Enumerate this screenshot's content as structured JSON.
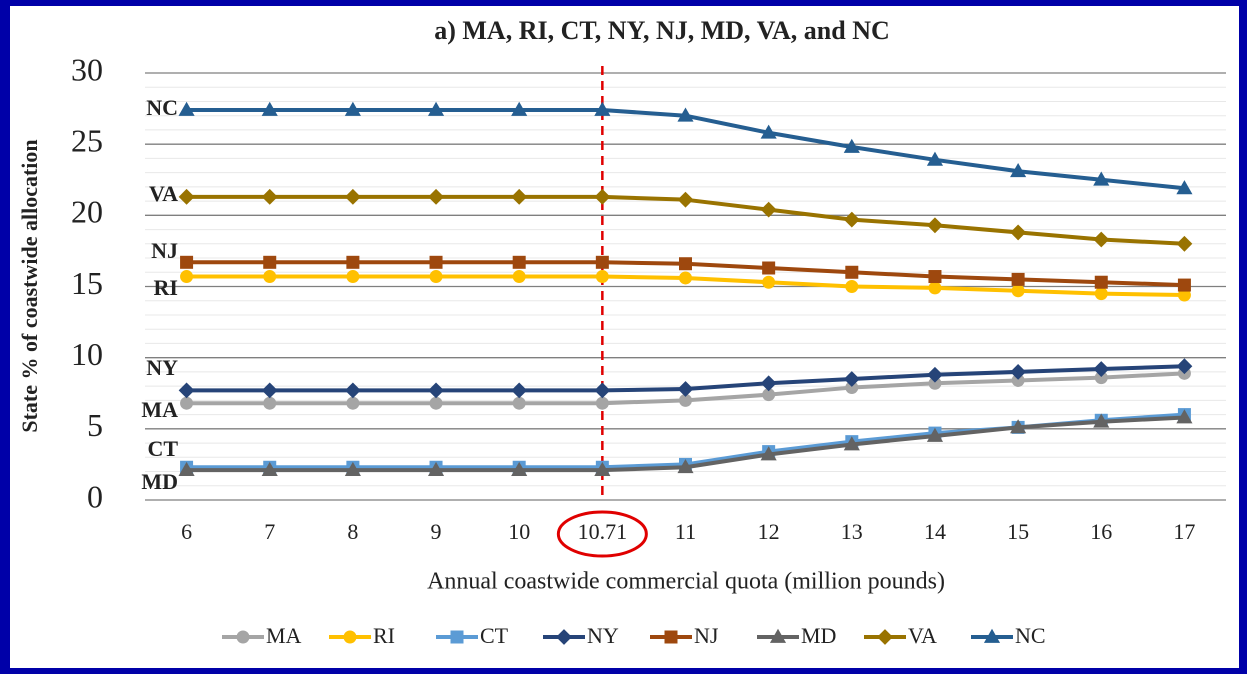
{
  "chart_data": {
    "type": "line",
    "title": "a) MA, RI, CT, NY, NJ, MD, VA, and NC",
    "x_label": "Annual coastwide commercial quota (million pounds)",
    "y_label": "State % of coastwide allocation",
    "categories": [
      "6",
      "7",
      "8",
      "9",
      "10",
      "10.71",
      "11",
      "12",
      "13",
      "14",
      "15",
      "16",
      "17"
    ],
    "highlight_category": "10.71",
    "ylim": [
      0,
      30
    ],
    "yticks": [
      0,
      5,
      10,
      15,
      20,
      25,
      30
    ],
    "minor_yticks": [
      1,
      2,
      3,
      4,
      6,
      7,
      8,
      9,
      11,
      12,
      13,
      14,
      16,
      17,
      18,
      19,
      21,
      22,
      23,
      24,
      26,
      27,
      28,
      29
    ],
    "grid": true,
    "legend": "bottom",
    "series": [
      {
        "name": "MA",
        "color": "#a5a5a5",
        "marker": "circle",
        "values": [
          6.8,
          6.8,
          6.8,
          6.8,
          6.8,
          6.8,
          7.0,
          7.4,
          7.9,
          8.2,
          8.4,
          8.6,
          8.9
        ]
      },
      {
        "name": "RI",
        "color": "#ffc000",
        "marker": "circle",
        "values": [
          15.7,
          15.7,
          15.7,
          15.7,
          15.7,
          15.7,
          15.6,
          15.3,
          15.0,
          14.9,
          14.7,
          14.5,
          14.4
        ]
      },
      {
        "name": "CT",
        "color": "#5b9bd5",
        "marker": "square",
        "values": [
          2.3,
          2.3,
          2.3,
          2.3,
          2.3,
          2.3,
          2.5,
          3.4,
          4.1,
          4.7,
          5.1,
          5.6,
          6.0
        ]
      },
      {
        "name": "NY",
        "color": "#264478",
        "marker": "diamond",
        "values": [
          7.7,
          7.7,
          7.7,
          7.7,
          7.7,
          7.7,
          7.8,
          8.2,
          8.5,
          8.8,
          9.0,
          9.2,
          9.4
        ]
      },
      {
        "name": "NJ",
        "color": "#9e480e",
        "marker": "square",
        "values": [
          16.7,
          16.7,
          16.7,
          16.7,
          16.7,
          16.7,
          16.6,
          16.3,
          16.0,
          15.7,
          15.5,
          15.3,
          15.1
        ]
      },
      {
        "name": "MD",
        "color": "#636363",
        "marker": "triangle",
        "values": [
          2.1,
          2.1,
          2.1,
          2.1,
          2.1,
          2.1,
          2.3,
          3.2,
          3.9,
          4.5,
          5.1,
          5.5,
          5.8
        ]
      },
      {
        "name": "VA",
        "color": "#997300",
        "marker": "diamond",
        "values": [
          21.3,
          21.3,
          21.3,
          21.3,
          21.3,
          21.3,
          21.1,
          20.4,
          19.7,
          19.3,
          18.8,
          18.3,
          18.0
        ]
      },
      {
        "name": "NC",
        "color": "#255e91",
        "marker": "triangle",
        "values": [
          27.4,
          27.4,
          27.4,
          27.4,
          27.4,
          27.4,
          27.0,
          25.8,
          24.8,
          23.9,
          23.1,
          22.5,
          21.9
        ]
      }
    ]
  }
}
